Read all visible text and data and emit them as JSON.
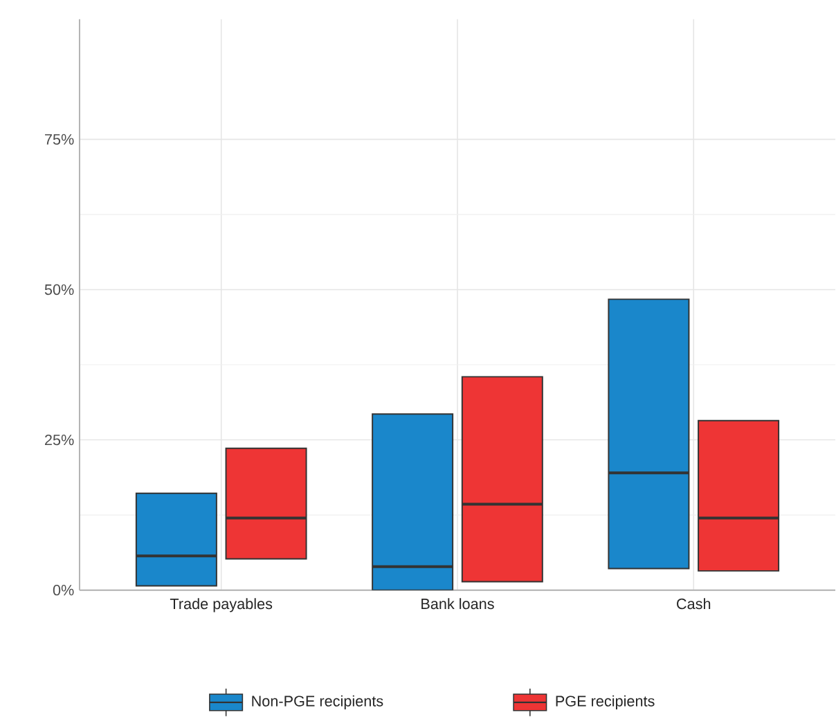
{
  "chart_data": {
    "type": "box",
    "categories": [
      "Trade payables",
      "Bank loans",
      "Cash"
    ],
    "series": [
      {
        "name": "Non-PGE recipients",
        "color": "#1a87cb",
        "boxes": [
          {
            "low": 0.7,
            "q1": 0.7,
            "median": 5.7,
            "q3": 16.1,
            "high": 16.1
          },
          {
            "low": 0,
            "q1": 0,
            "median": 3.9,
            "q3": 29.3,
            "high": 29.3
          },
          {
            "low": 3.6,
            "q1": 3.6,
            "median": 19.5,
            "q3": 48.4,
            "high": 48.4
          }
        ]
      },
      {
        "name": "PGE recipients",
        "color": "#ee3535",
        "boxes": [
          {
            "low": 5.2,
            "q1": 5.2,
            "median": 12.0,
            "q3": 23.6,
            "high": 23.6
          },
          {
            "low": 1.4,
            "q1": 1.4,
            "median": 14.3,
            "q3": 35.5,
            "high": 35.5
          },
          {
            "low": 3.2,
            "q1": 3.2,
            "median": 12.0,
            "q3": 28.2,
            "high": 28.2
          }
        ]
      }
    ],
    "ylim": [
      0,
      95
    ],
    "yticks": [
      {
        "value": 0,
        "label": "0%"
      },
      {
        "value": 25,
        "label": "25%"
      },
      {
        "value": 50,
        "label": "50%"
      },
      {
        "value": 75,
        "label": "75%"
      }
    ],
    "grid": true,
    "legend": "bottom"
  }
}
